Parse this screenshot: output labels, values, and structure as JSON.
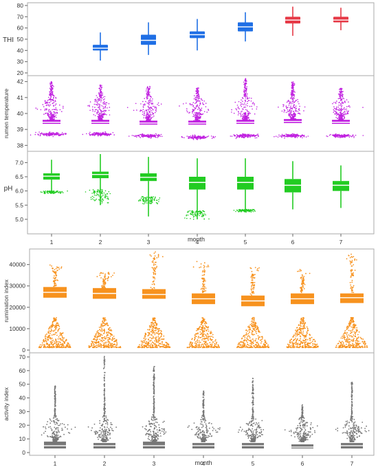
{
  "figure": {
    "top_xlabel": "month",
    "bottom_xlabel": "month",
    "months": [
      "1",
      "2",
      "3",
      "4",
      "5",
      "6",
      "7"
    ]
  },
  "chart_data": [
    {
      "type": "boxplot",
      "panel": "top",
      "ylabel": "THI",
      "ylim": [
        20,
        80
      ],
      "yticks": [
        20,
        30,
        40,
        50,
        60,
        70,
        80
      ],
      "categories": [
        "1",
        "2",
        "3",
        "4",
        "5",
        "6",
        "7"
      ],
      "colors": [
        "#1f6fe5",
        "#1f6fe5",
        "#1f6fe5",
        "#1f6fe5",
        "#1f6fe5",
        "#e63946",
        "#e63946"
      ],
      "box_stats": [
        {
          "month": "1",
          "min": null,
          "q1": null,
          "median": null,
          "q3": null,
          "max": null
        },
        {
          "month": "2",
          "min": 31,
          "q1": 40,
          "median": 42,
          "q3": 45,
          "max": 56
        },
        {
          "month": "3",
          "min": 36,
          "q1": 45,
          "median": 49,
          "q3": 54,
          "max": 65
        },
        {
          "month": "4",
          "min": 40,
          "q1": 51,
          "median": 54,
          "q3": 57,
          "max": 68
        },
        {
          "month": "5",
          "min": 48,
          "q1": 57,
          "median": 61,
          "q3": 65,
          "max": 74
        },
        {
          "month": "6",
          "min": 53,
          "q1": 64,
          "median": 67,
          "q3": 70,
          "max": 79
        },
        {
          "month": "7",
          "min": 58,
          "q1": 65,
          "median": 67,
          "q3": 70,
          "max": 78
        }
      ]
    },
    {
      "type": "violin-scatter",
      "panel": "top",
      "ylabel": "rumen temperature",
      "ylim": [
        37.8,
        42.2
      ],
      "yticks": [
        38,
        39,
        40,
        41,
        42
      ],
      "categories": [
        "1",
        "2",
        "3",
        "4",
        "5",
        "6",
        "7"
      ],
      "color": "#c020e0",
      "box_stats": [
        {
          "month": "1",
          "q1": 39.35,
          "median": 39.45,
          "q3": 39.6,
          "low_cluster": 38.7,
          "high_tail": 42.0
        },
        {
          "month": "2",
          "q1": 39.35,
          "median": 39.45,
          "q3": 39.6,
          "low_cluster": 38.7,
          "high_tail": 41.8
        },
        {
          "month": "3",
          "q1": 39.3,
          "median": 39.4,
          "q3": 39.55,
          "low_cluster": 38.6,
          "high_tail": 41.7
        },
        {
          "month": "4",
          "q1": 39.3,
          "median": 39.4,
          "q3": 39.55,
          "low_cluster": 38.5,
          "high_tail": 41.6
        },
        {
          "month": "5",
          "q1": 39.35,
          "median": 39.45,
          "q3": 39.6,
          "low_cluster": 38.6,
          "high_tail": 42.2
        },
        {
          "month": "6",
          "q1": 39.4,
          "median": 39.5,
          "q3": 39.65,
          "low_cluster": 38.6,
          "high_tail": 42.0
        },
        {
          "month": "7",
          "q1": 39.35,
          "median": 39.45,
          "q3": 39.6,
          "low_cluster": 38.6,
          "high_tail": 41.6
        }
      ]
    },
    {
      "type": "boxplot",
      "panel": "top",
      "ylabel": "pH",
      "ylim": [
        4.9,
        7.3
      ],
      "yticks": [
        5.0,
        5.5,
        6.0,
        6.5,
        7.0
      ],
      "categories": [
        "1",
        "2",
        "3",
        "4",
        "5",
        "6",
        "7"
      ],
      "color": "#22cc22",
      "box_stats": [
        {
          "month": "1",
          "min": 5.9,
          "q1": 6.4,
          "median": 6.52,
          "q3": 6.62,
          "max": 7.1,
          "outliers_low": [
            5.9,
            6.0
          ]
        },
        {
          "month": "2",
          "min": 5.5,
          "q1": 6.45,
          "median": 6.58,
          "q3": 6.68,
          "max": 7.3,
          "outliers_low": [
            5.5,
            6.05
          ]
        },
        {
          "month": "3",
          "min": 5.1,
          "q1": 6.35,
          "median": 6.48,
          "q3": 6.62,
          "max": 7.2,
          "outliers_low": [
            5.5,
            5.8
          ]
        },
        {
          "month": "4",
          "min": 5.0,
          "q1": 6.05,
          "median": 6.3,
          "q3": 6.5,
          "max": 7.15,
          "outliers_low": [
            5.0,
            5.3
          ]
        },
        {
          "month": "5",
          "min": 5.25,
          "q1": 6.05,
          "median": 6.3,
          "q3": 6.5,
          "max": 7.15,
          "outliers_low": [
            5.25,
            5.35
          ]
        },
        {
          "month": "6",
          "min": 5.35,
          "q1": 5.95,
          "median": 6.2,
          "q3": 6.42,
          "max": 7.05
        },
        {
          "month": "7",
          "min": 5.4,
          "q1": 6.0,
          "median": 6.2,
          "q3": 6.35,
          "max": 6.9
        }
      ]
    },
    {
      "type": "violin-scatter",
      "panel": "bottom",
      "ylabel": "rumination index",
      "ylim": [
        0,
        46000
      ],
      "yticks": [
        0,
        10000,
        20000,
        30000,
        40000
      ],
      "ytick_labels": [
        "0",
        "10000",
        "20000",
        "30000",
        "40000"
      ],
      "categories": [
        "1",
        "2",
        "3",
        "4",
        "5",
        "6",
        "7"
      ],
      "color": "#f7921e",
      "box_stats": [
        {
          "month": "1",
          "q1": 24500,
          "median": 27000,
          "q3": 29500,
          "max": 40000
        },
        {
          "month": "2",
          "q1": 24000,
          "median": 26500,
          "q3": 29000,
          "max": 36500
        },
        {
          "month": "3",
          "q1": 24000,
          "median": 26000,
          "q3": 28500,
          "max": 46000
        },
        {
          "month": "4",
          "q1": 21500,
          "median": 24000,
          "q3": 26500,
          "max": 41500
        },
        {
          "month": "5",
          "q1": 20500,
          "median": 23000,
          "q3": 25500,
          "max": 39000
        },
        {
          "month": "6",
          "q1": 21500,
          "median": 24000,
          "q3": 26500,
          "max": 38000
        },
        {
          "month": "7",
          "q1": 22000,
          "median": 24500,
          "q3": 26500,
          "max": 45000
        }
      ]
    },
    {
      "type": "violin-scatter",
      "panel": "bottom",
      "ylabel": "activity index",
      "ylim": [
        0,
        71
      ],
      "yticks": [
        0,
        10,
        20,
        30,
        40,
        50,
        60,
        70
      ],
      "categories": [
        "1",
        "2",
        "3",
        "4",
        "5",
        "6",
        "7"
      ],
      "color": "#777777",
      "box_stats": [
        {
          "month": "1",
          "q1": 3,
          "median": 5,
          "q3": 8,
          "max": 50
        },
        {
          "month": "2",
          "q1": 3,
          "median": 5,
          "q3": 7,
          "max": 71
        },
        {
          "month": "3",
          "q1": 3,
          "median": 5,
          "q3": 8,
          "max": 63
        },
        {
          "month": "4",
          "q1": 3,
          "median": 5,
          "q3": 7,
          "max": 45
        },
        {
          "month": "5",
          "q1": 3,
          "median": 5,
          "q3": 7,
          "max": 55
        },
        {
          "month": "6",
          "q1": 3,
          "median": 4,
          "q3": 6,
          "max": 35
        },
        {
          "month": "7",
          "q1": 3,
          "median": 5,
          "q3": 7,
          "max": 52
        }
      ]
    }
  ]
}
